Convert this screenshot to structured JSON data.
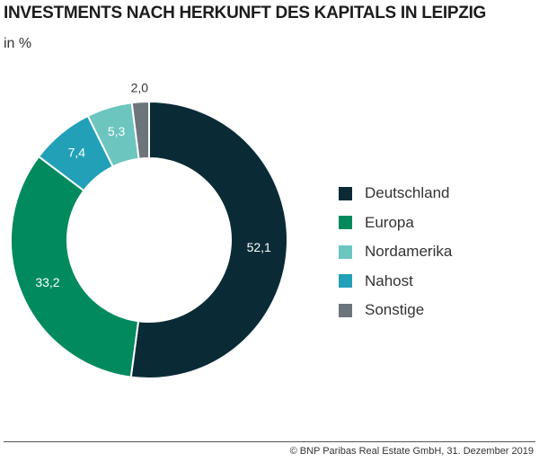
{
  "title": "INVESTMENTS NACH HERKUNFT DES KAPITALS IN LEIPZIG",
  "subtitle": "in %",
  "footer": "© BNP Paribas Real Estate GmbH, 31. Dezember 2019",
  "chart_data": {
    "type": "pie",
    "variant": "donut",
    "unit": "%",
    "slices": [
      {
        "name": "Deutschland",
        "value": 52.1,
        "label": "52,1",
        "color": "#0a2b36"
      },
      {
        "name": "Europa",
        "value": 33.2,
        "label": "33,2",
        "color": "#008a5e"
      },
      {
        "name": "Nahost",
        "value": 7.4,
        "label": "7,4",
        "color": "#22a0b8"
      },
      {
        "name": "Nordamerika",
        "value": 5.3,
        "label": "5,3",
        "color": "#6cc5bf"
      },
      {
        "name": "Sonstige",
        "value": 2.0,
        "label": "2,0",
        "color": "#6c747c"
      }
    ],
    "legend": {
      "placement": "right",
      "entries": [
        {
          "name": "Deutschland",
          "color": "#0a2b36"
        },
        {
          "name": "Europa",
          "color": "#008a5e"
        },
        {
          "name": "Nordamerika",
          "color": "#6cc5bf"
        },
        {
          "name": "Nahost",
          "color": "#22a0b8"
        },
        {
          "name": "Sonstige",
          "color": "#6c747c"
        }
      ]
    }
  }
}
